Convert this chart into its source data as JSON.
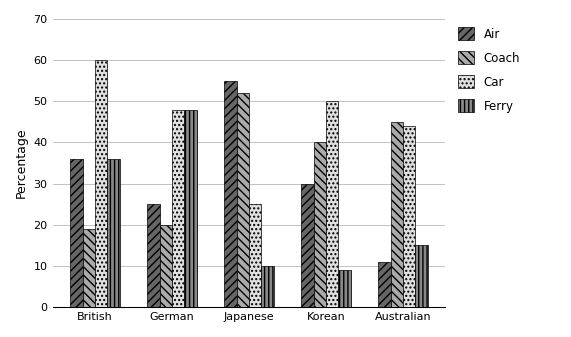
{
  "categories": [
    "British",
    "German",
    "Japanese",
    "Korean",
    "Australian"
  ],
  "series": {
    "Air": [
      36,
      25,
      55,
      30,
      11
    ],
    "Coach": [
      19,
      20,
      52,
      40,
      45
    ],
    "Car": [
      60,
      48,
      25,
      50,
      44
    ],
    "Ferry": [
      36,
      48,
      10,
      9,
      15
    ]
  },
  "ylabel": "Percentage",
  "ylim": [
    0,
    70
  ],
  "yticks": [
    0,
    10,
    20,
    30,
    40,
    50,
    60,
    70
  ],
  "bar_width": 0.16,
  "colors": {
    "Air": "#666666",
    "Coach": "#aaaaaa",
    "Car": "#e0e0e0",
    "Ferry": "#888888"
  },
  "hatches": {
    "Air": "////",
    "Coach": "\\\\\\\\",
    "Car": "....",
    "Ferry": "||||"
  },
  "legend_labels": [
    "Air",
    "Coach",
    "Car",
    "Ferry"
  ],
  "background_color": "#ffffff"
}
